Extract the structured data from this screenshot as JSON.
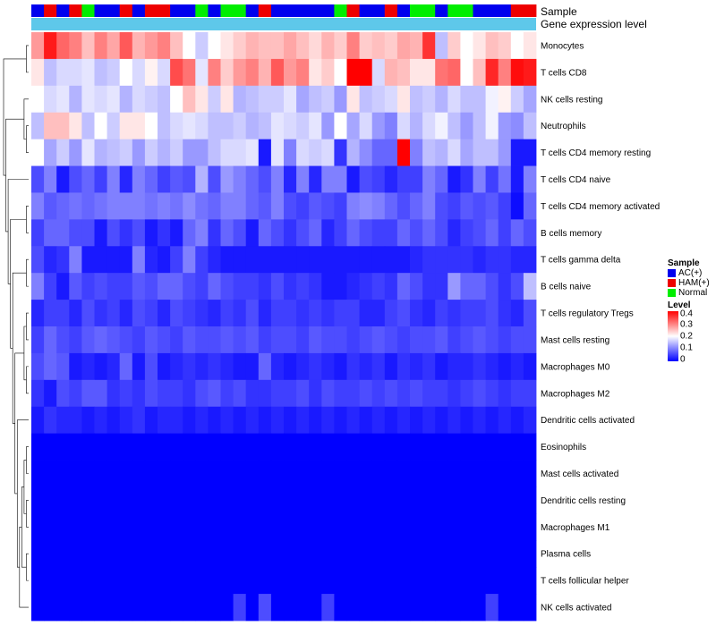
{
  "chart_data": {
    "type": "heatmap",
    "title": "",
    "annotation_rows": [
      "Sample",
      "Gene expression level"
    ],
    "sample_legend_title": "Sample",
    "sample_groups": [
      {
        "name": "AC(+)",
        "color": "#0000ee"
      },
      {
        "name": "HAM(+)",
        "color": "#ee0000"
      },
      {
        "name": "Normal",
        "color": "#00ee00"
      }
    ],
    "sample_track": [
      0,
      1,
      0,
      1,
      2,
      0,
      0,
      1,
      0,
      1,
      1,
      0,
      0,
      2,
      0,
      2,
      2,
      0,
      1,
      0,
      0,
      0,
      0,
      0,
      2,
      1,
      0,
      0,
      1,
      0,
      2,
      2,
      0,
      2,
      2,
      0,
      0,
      0,
      1,
      1
    ],
    "expression_track_color": "#5ec8ea",
    "level_legend_title": "Level",
    "level_ticks": [
      "0.4",
      "0.3",
      "0.2",
      "0.1",
      "0"
    ],
    "level_range": [
      0,
      0.4
    ],
    "rows": [
      {
        "label": "Monocytes",
        "values": [
          0.28,
          0.38,
          0.32,
          0.3,
          0.25,
          0.3,
          0.27,
          0.33,
          0.26,
          0.28,
          0.3,
          0.25,
          0.2,
          0.16,
          0.2,
          0.22,
          0.24,
          0.26,
          0.25,
          0.25,
          0.27,
          0.25,
          0.23,
          0.26,
          0.24,
          0.3,
          0.24,
          0.25,
          0.24,
          0.27,
          0.26,
          0.36,
          0.15,
          0.24,
          0.2,
          0.22,
          0.25,
          0.24,
          0.2,
          0.22
        ]
      },
      {
        "label": "T cells CD8",
        "values": [
          0.22,
          0.15,
          0.17,
          0.17,
          0.18,
          0.15,
          0.16,
          0.2,
          0.17,
          0.21,
          0.17,
          0.34,
          0.31,
          0.18,
          0.3,
          0.24,
          0.28,
          0.3,
          0.26,
          0.33,
          0.28,
          0.3,
          0.22,
          0.24,
          0.2,
          0.4,
          0.4,
          0.17,
          0.26,
          0.25,
          0.22,
          0.22,
          0.31,
          0.32,
          0.2,
          0.25,
          0.37,
          0.3,
          0.39,
          0.38
        ]
      },
      {
        "label": "NK cells resting",
        "values": [
          0.2,
          0.17,
          0.18,
          0.14,
          0.18,
          0.17,
          0.18,
          0.14,
          0.17,
          0.16,
          0.15,
          0.2,
          0.25,
          0.22,
          0.16,
          0.22,
          0.14,
          0.15,
          0.16,
          0.16,
          0.18,
          0.13,
          0.15,
          0.16,
          0.12,
          0.22,
          0.15,
          0.16,
          0.17,
          0.22,
          0.15,
          0.16,
          0.14,
          0.17,
          0.15,
          0.15,
          0.19,
          0.21,
          0.16,
          0.13
        ]
      },
      {
        "label": "Neutrophils",
        "values": [
          0.15,
          0.25,
          0.25,
          0.22,
          0.15,
          0.2,
          0.16,
          0.22,
          0.22,
          0.2,
          0.15,
          0.17,
          0.18,
          0.17,
          0.15,
          0.15,
          0.16,
          0.14,
          0.15,
          0.18,
          0.17,
          0.16,
          0.18,
          0.12,
          0.2,
          0.13,
          0.17,
          0.12,
          0.1,
          0.17,
          0.14,
          0.17,
          0.19,
          0.15,
          0.12,
          0.15,
          0.19,
          0.12,
          0.11,
          0.15
        ]
      },
      {
        "label": "T cells CD4 memory resting",
        "values": [
          0.2,
          0.13,
          0.16,
          0.12,
          0.18,
          0.14,
          0.15,
          0.16,
          0.12,
          0.16,
          0.14,
          0.16,
          0.12,
          0.12,
          0.15,
          0.17,
          0.17,
          0.18,
          0.02,
          0.18,
          0.1,
          0.17,
          0.16,
          0.17,
          0.04,
          0.14,
          0.11,
          0.08,
          0.08,
          0.4,
          0.1,
          0.15,
          0.14,
          0.17,
          0.13,
          0.15,
          0.15,
          0.12,
          0.02,
          0.02
        ]
      },
      {
        "label": "T cells CD4 naive",
        "values": [
          0.06,
          0.1,
          0.02,
          0.06,
          0.08,
          0.05,
          0.1,
          0.03,
          0.1,
          0.08,
          0.05,
          0.07,
          0.06,
          0.14,
          0.06,
          0.12,
          0.1,
          0.08,
          0.06,
          0.1,
          0.03,
          0.1,
          0.03,
          0.1,
          0.1,
          0.02,
          0.06,
          0.05,
          0.03,
          0.05,
          0.05,
          0.1,
          0.08,
          0.02,
          0.04,
          0.1,
          0.05,
          0.09,
          0.02,
          0.1
        ]
      },
      {
        "label": "T cells CD4 memory activated",
        "values": [
          0.1,
          0.07,
          0.08,
          0.09,
          0.08,
          0.09,
          0.1,
          0.1,
          0.1,
          0.09,
          0.1,
          0.09,
          0.11,
          0.09,
          0.08,
          0.1,
          0.1,
          0.08,
          0.07,
          0.1,
          0.06,
          0.05,
          0.07,
          0.06,
          0.05,
          0.1,
          0.11,
          0.1,
          0.08,
          0.06,
          0.08,
          0.1,
          0.06,
          0.05,
          0.07,
          0.06,
          0.07,
          0.05,
          0.01,
          0.08
        ]
      },
      {
        "label": "B cells memory",
        "values": [
          0.05,
          0.08,
          0.08,
          0.06,
          0.06,
          0.02,
          0.06,
          0.04,
          0.06,
          0.02,
          0.04,
          0.02,
          0.08,
          0.1,
          0.04,
          0.08,
          0.06,
          0.02,
          0.08,
          0.06,
          0.04,
          0.06,
          0.08,
          0.03,
          0.05,
          0.08,
          0.06,
          0.05,
          0.05,
          0.08,
          0.06,
          0.08,
          0.06,
          0.03,
          0.05,
          0.06,
          0.08,
          0.05,
          0.08,
          0.06
        ]
      },
      {
        "label": "T cells gamma delta",
        "values": [
          0.06,
          0.03,
          0.04,
          0.1,
          0.02,
          0.02,
          0.02,
          0.02,
          0.1,
          0.03,
          0.02,
          0.05,
          0.1,
          0.05,
          0.03,
          0.02,
          0.02,
          0.02,
          0.02,
          0.02,
          0.02,
          0.02,
          0.02,
          0.02,
          0.02,
          0.02,
          0.02,
          0.02,
          0.02,
          0.02,
          0.03,
          0.04,
          0.04,
          0.04,
          0.04,
          0.03,
          0.04,
          0.04,
          0.03,
          0.03
        ]
      },
      {
        "label": "B cells naive",
        "values": [
          0.1,
          0.05,
          0.02,
          0.07,
          0.05,
          0.06,
          0.05,
          0.05,
          0.07,
          0.06,
          0.08,
          0.08,
          0.06,
          0.05,
          0.08,
          0.06,
          0.05,
          0.05,
          0.04,
          0.06,
          0.04,
          0.05,
          0.04,
          0.02,
          0.02,
          0.03,
          0.04,
          0.05,
          0.04,
          0.08,
          0.06,
          0.04,
          0.04,
          0.12,
          0.08,
          0.08,
          0.06,
          0.04,
          0.06,
          0.15
        ]
      },
      {
        "label": "T cells regulatory  Tregs",
        "values": [
          0.03,
          0.05,
          0.05,
          0.03,
          0.06,
          0.04,
          0.05,
          0.03,
          0.06,
          0.05,
          0.03,
          0.06,
          0.05,
          0.04,
          0.03,
          0.05,
          0.04,
          0.06,
          0.03,
          0.05,
          0.05,
          0.04,
          0.05,
          0.04,
          0.05,
          0.05,
          0.03,
          0.03,
          0.05,
          0.06,
          0.04,
          0.03,
          0.05,
          0.04,
          0.05,
          0.05,
          0.06,
          0.04,
          0.03,
          0.06
        ]
      },
      {
        "label": "Mast cells resting",
        "values": [
          0.05,
          0.08,
          0.06,
          0.05,
          0.07,
          0.08,
          0.07,
          0.06,
          0.05,
          0.07,
          0.06,
          0.05,
          0.07,
          0.06,
          0.06,
          0.07,
          0.06,
          0.07,
          0.05,
          0.06,
          0.06,
          0.05,
          0.07,
          0.06,
          0.06,
          0.05,
          0.06,
          0.07,
          0.06,
          0.05,
          0.06,
          0.06,
          0.07,
          0.05,
          0.06,
          0.07,
          0.06,
          0.05,
          0.06,
          0.06
        ]
      },
      {
        "label": "Macrophages M0",
        "values": [
          0.06,
          0.08,
          0.07,
          0.02,
          0.03,
          0.02,
          0.03,
          0.08,
          0.02,
          0.06,
          0.02,
          0.03,
          0.04,
          0.03,
          0.04,
          0.03,
          0.02,
          0.02,
          0.08,
          0.03,
          0.02,
          0.03,
          0.04,
          0.03,
          0.02,
          0.04,
          0.03,
          0.04,
          0.02,
          0.04,
          0.03,
          0.04,
          0.02,
          0.03,
          0.03,
          0.04,
          0.03,
          0.02,
          0.03,
          0.02
        ]
      },
      {
        "label": "Macrophages M2",
        "values": [
          0.04,
          0.02,
          0.06,
          0.05,
          0.07,
          0.07,
          0.04,
          0.05,
          0.04,
          0.06,
          0.05,
          0.05,
          0.04,
          0.06,
          0.07,
          0.05,
          0.06,
          0.04,
          0.04,
          0.05,
          0.05,
          0.06,
          0.04,
          0.06,
          0.05,
          0.05,
          0.06,
          0.05,
          0.06,
          0.05,
          0.06,
          0.05,
          0.05,
          0.04,
          0.05,
          0.06,
          0.05,
          0.04,
          0.05,
          0.05
        ]
      },
      {
        "label": "Dendritic cells activated",
        "values": [
          0.02,
          0.04,
          0.03,
          0.03,
          0.02,
          0.03,
          0.02,
          0.03,
          0.04,
          0.02,
          0.03,
          0.03,
          0.02,
          0.03,
          0.02,
          0.03,
          0.02,
          0.03,
          0.02,
          0.03,
          0.02,
          0.03,
          0.02,
          0.03,
          0.02,
          0.03,
          0.02,
          0.03,
          0.02,
          0.03,
          0.02,
          0.03,
          0.02,
          0.03,
          0.02,
          0.03,
          0.02,
          0.03,
          0.02,
          0.03
        ]
      },
      {
        "label": "Eosinophils",
        "values": [
          0,
          0,
          0,
          0,
          0,
          0,
          0,
          0,
          0,
          0,
          0,
          0,
          0,
          0,
          0,
          0,
          0,
          0,
          0,
          0,
          0,
          0,
          0,
          0,
          0,
          0,
          0,
          0,
          0,
          0,
          0,
          0,
          0,
          0,
          0,
          0,
          0,
          0,
          0,
          0
        ]
      },
      {
        "label": "Mast cells activated",
        "values": [
          0,
          0,
          0,
          0,
          0,
          0,
          0,
          0,
          0,
          0,
          0,
          0,
          0,
          0,
          0,
          0,
          0,
          0,
          0,
          0,
          0,
          0,
          0,
          0,
          0,
          0,
          0,
          0,
          0,
          0,
          0,
          0,
          0,
          0,
          0,
          0,
          0,
          0,
          0,
          0
        ]
      },
      {
        "label": "Dendritic cells resting",
        "values": [
          0,
          0,
          0,
          0,
          0,
          0,
          0,
          0,
          0,
          0,
          0,
          0,
          0,
          0,
          0,
          0,
          0,
          0,
          0,
          0,
          0,
          0,
          0,
          0,
          0,
          0,
          0,
          0,
          0,
          0,
          0,
          0,
          0,
          0,
          0,
          0,
          0,
          0,
          0,
          0
        ]
      },
      {
        "label": "Macrophages M1",
        "values": [
          0,
          0,
          0,
          0,
          0,
          0,
          0,
          0,
          0,
          0,
          0,
          0,
          0,
          0,
          0,
          0,
          0,
          0,
          0,
          0,
          0,
          0,
          0,
          0,
          0,
          0,
          0,
          0,
          0,
          0,
          0,
          0,
          0,
          0,
          0,
          0,
          0,
          0,
          0,
          0
        ]
      },
      {
        "label": "Plasma cells",
        "values": [
          0,
          0,
          0,
          0,
          0,
          0,
          0,
          0,
          0,
          0,
          0,
          0,
          0,
          0,
          0,
          0,
          0,
          0,
          0,
          0,
          0,
          0,
          0,
          0,
          0,
          0,
          0,
          0,
          0,
          0,
          0,
          0,
          0,
          0,
          0,
          0,
          0,
          0,
          0,
          0
        ]
      },
      {
        "label": "T cells follicular helper",
        "values": [
          0,
          0,
          0,
          0,
          0,
          0,
          0,
          0,
          0,
          0,
          0,
          0,
          0,
          0,
          0,
          0,
          0,
          0,
          0,
          0,
          0,
          0,
          0,
          0,
          0,
          0,
          0,
          0,
          0,
          0,
          0,
          0,
          0,
          0,
          0,
          0,
          0,
          0,
          0,
          0
        ]
      },
      {
        "label": "NK cells activated",
        "values": [
          0,
          0,
          0,
          0,
          0,
          0,
          0,
          0,
          0,
          0,
          0,
          0,
          0,
          0,
          0,
          0,
          0.05,
          0,
          0.06,
          0,
          0,
          0,
          0,
          0.05,
          0,
          0,
          0,
          0,
          0,
          0,
          0,
          0,
          0,
          0,
          0,
          0,
          0.05,
          0,
          0,
          0
        ]
      }
    ],
    "dendrogram": [
      {
        "a": 15,
        "b": 16
      },
      {
        "a": 17,
        "b": 18
      },
      {
        "a": 19,
        "b": 20
      },
      {
        "a": "c0",
        "b": "c1"
      },
      {
        "a": "c3",
        "b": "c2"
      },
      {
        "a": "c4",
        "b": 21
      },
      {
        "a": 14,
        "b": "c5"
      },
      {
        "a": 12,
        "b": 13
      },
      {
        "a": 10,
        "b": 11
      },
      {
        "a": "c7",
        "b": "c8"
      },
      {
        "a": "c9",
        "b": "c6"
      },
      {
        "a": 8,
        "b": 9
      },
      {
        "a": "c11",
        "b": "c10"
      },
      {
        "a": 6,
        "b": 7
      },
      {
        "a": "c13",
        "b": "c12"
      },
      {
        "a": 5,
        "b": "c14"
      },
      {
        "a": 3,
        "b": 4
      },
      {
        "a": 2,
        "b": "c16"
      },
      {
        "a": "c17",
        "b": "c15"
      },
      {
        "a": 0,
        "b": 1
      },
      {
        "a": "c19",
        "b": "c18"
      }
    ]
  }
}
